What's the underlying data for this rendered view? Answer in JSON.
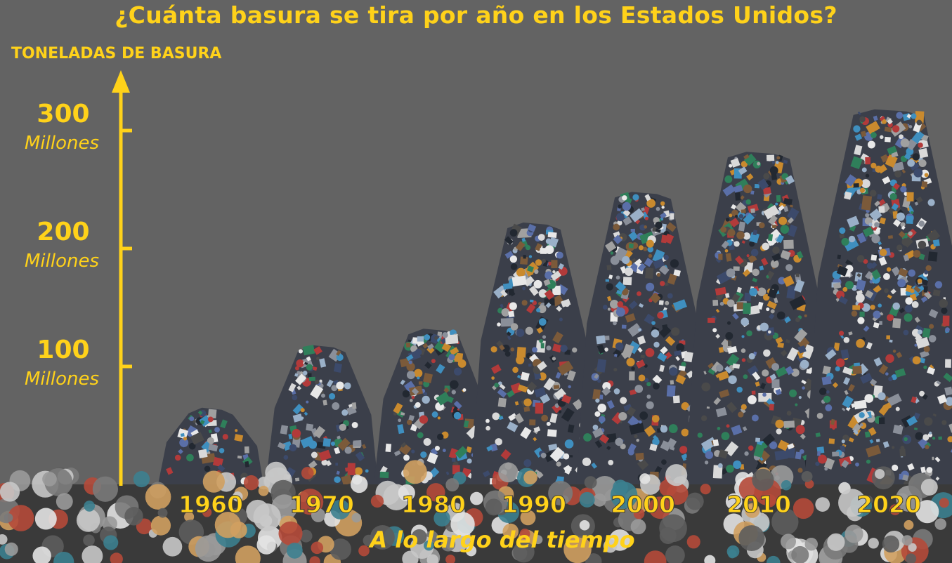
{
  "colors": {
    "background": "#636363",
    "accent": "#ffd21a",
    "ground": "#3a3a3a"
  },
  "chart_data": {
    "type": "bar",
    "title": "¿Cuánta basura se tira por año en los Estados Unidos?",
    "ylabel": "TONELADAS DE BASURA",
    "xlabel": "A lo largo del tiempo",
    "categories": [
      "1960",
      "1970",
      "1980",
      "1990",
      "2000",
      "2010",
      "2020"
    ],
    "values": [
      65,
      118,
      132,
      222,
      248,
      282,
      318
    ],
    "ylim": [
      0,
      330
    ],
    "yticks": [
      {
        "value": 100,
        "label": "100",
        "sublabel": "Millones"
      },
      {
        "value": 200,
        "label": "200",
        "sublabel": "Millones"
      },
      {
        "value": 300,
        "label": "300",
        "sublabel": "Millones"
      }
    ],
    "grid": false,
    "legend": "none",
    "bar_style": "pile of trash"
  }
}
